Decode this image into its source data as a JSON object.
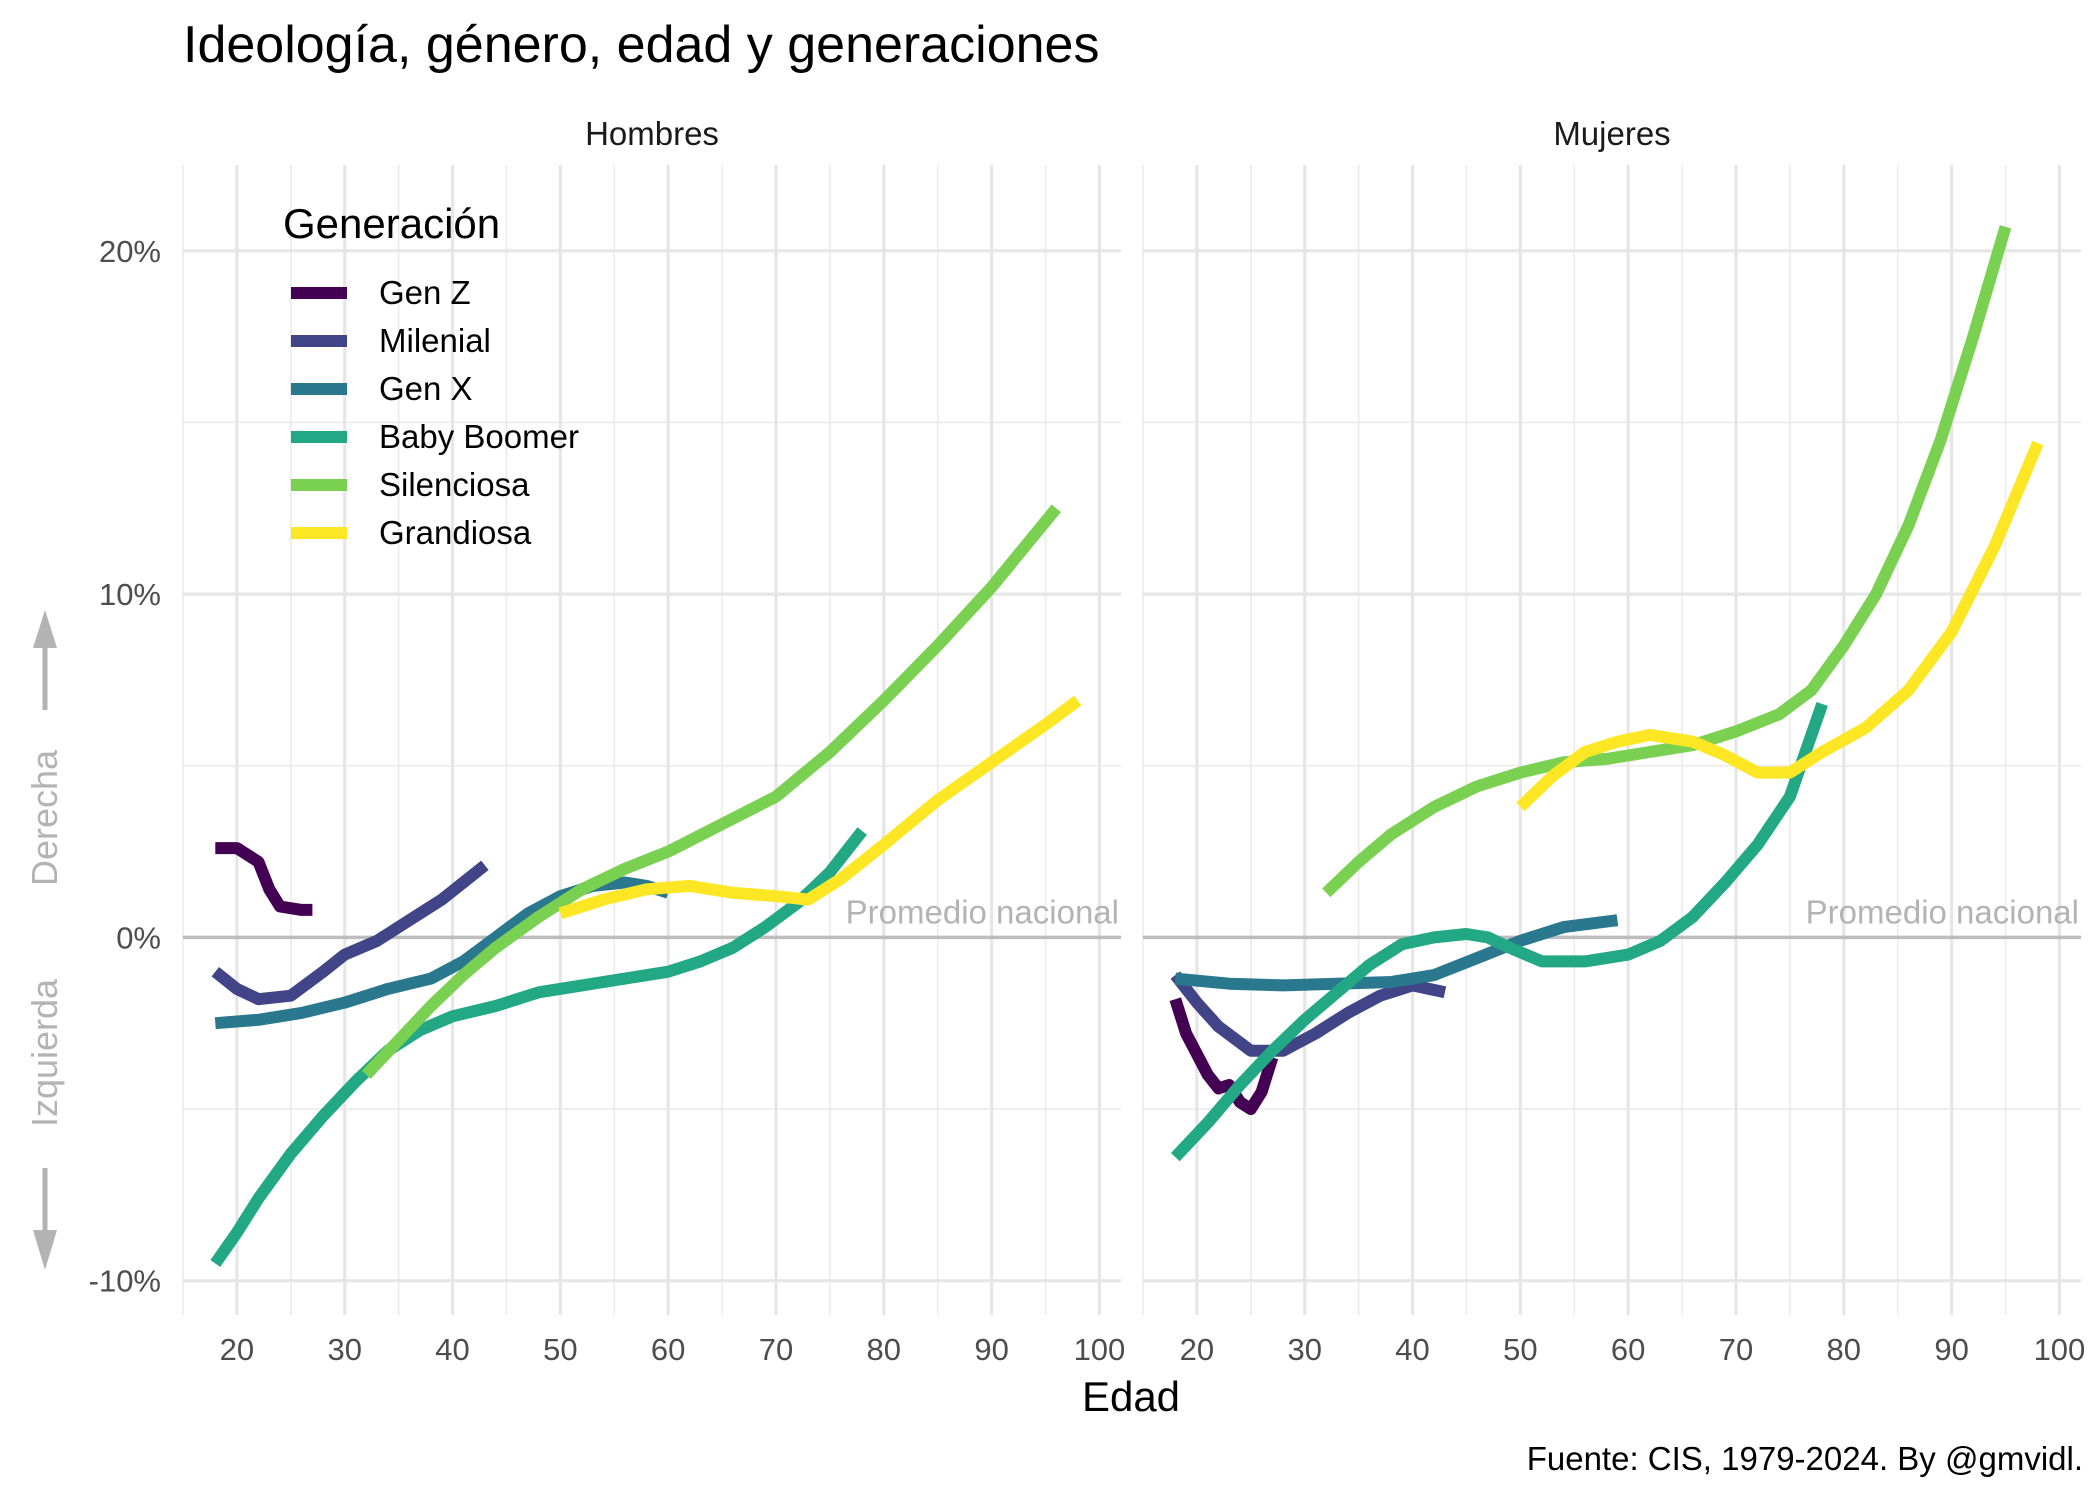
{
  "chart_data": {
    "type": "line",
    "title": "Ideología, género, edad y generaciones",
    "caption": "Fuente: CIS, 1979-2024. By @gmvidl.",
    "xlabel": "Edad",
    "xlim": [
      15,
      102
    ],
    "ylim": [
      -11,
      22.5
    ],
    "x_ticks": [
      20,
      30,
      40,
      50,
      60,
      70,
      80,
      90,
      100
    ],
    "y_ticks": [
      {
        "value": -10,
        "label": "-10%"
      },
      {
        "value": 0,
        "label": "0%"
      },
      {
        "value": 10,
        "label": "10%"
      },
      {
        "value": 20,
        "label": "20%"
      }
    ],
    "reference_line": {
      "value": 0,
      "label": "Promedio nacional"
    },
    "direction_labels": {
      "up": "Derecha",
      "down": "Izquierda"
    },
    "grid": true,
    "legend": {
      "title": "Generación",
      "position": "top-left",
      "entries": [
        {
          "name": "Gen Z",
          "color": "#440154"
        },
        {
          "name": "Milenial",
          "color": "#414487"
        },
        {
          "name": "Gen X",
          "color": "#2a788e"
        },
        {
          "name": "Baby Boomer",
          "color": "#22a884"
        },
        {
          "name": "Silenciosa",
          "color": "#7ad151"
        },
        {
          "name": "Grandiosa",
          "color": "#fde725"
        }
      ]
    },
    "panels": [
      {
        "label": "Hombres",
        "series": [
          {
            "name": "Gen Z",
            "points": [
              [
                18,
                2.6
              ],
              [
                20,
                2.6
              ],
              [
                22,
                2.2
              ],
              [
                23,
                1.4
              ],
              [
                24,
                0.9
              ],
              [
                26,
                0.8
              ],
              [
                27,
                0.8
              ]
            ]
          },
          {
            "name": "Milenial",
            "points": [
              [
                18,
                -1.0
              ],
              [
                20,
                -1.5
              ],
              [
                22,
                -1.8
              ],
              [
                25,
                -1.7
              ],
              [
                28,
                -1.0
              ],
              [
                30,
                -0.5
              ],
              [
                33,
                -0.1
              ],
              [
                36,
                0.5
              ],
              [
                39,
                1.1
              ],
              [
                41,
                1.6
              ],
              [
                43,
                2.1
              ]
            ]
          },
          {
            "name": "Gen X",
            "points": [
              [
                18,
                -2.5
              ],
              [
                22,
                -2.4
              ],
              [
                26,
                -2.2
              ],
              [
                30,
                -1.9
              ],
              [
                34,
                -1.5
              ],
              [
                38,
                -1.2
              ],
              [
                41,
                -0.7
              ],
              [
                44,
                0.0
              ],
              [
                47,
                0.7
              ],
              [
                50,
                1.2
              ],
              [
                53,
                1.5
              ],
              [
                56,
                1.6
              ],
              [
                58,
                1.5
              ],
              [
                60,
                1.3
              ]
            ]
          },
          {
            "name": "Baby Boomer",
            "points": [
              [
                18,
                -9.5
              ],
              [
                20,
                -8.6
              ],
              [
                22,
                -7.6
              ],
              [
                25,
                -6.3
              ],
              [
                28,
                -5.2
              ],
              [
                31,
                -4.2
              ],
              [
                34,
                -3.3
              ],
              [
                37,
                -2.7
              ],
              [
                40,
                -2.3
              ],
              [
                44,
                -2.0
              ],
              [
                48,
                -1.6
              ],
              [
                52,
                -1.4
              ],
              [
                56,
                -1.2
              ],
              [
                60,
                -1.0
              ],
              [
                63,
                -0.7
              ],
              [
                66,
                -0.3
              ],
              [
                69,
                0.3
              ],
              [
                72,
                1.0
              ],
              [
                75,
                1.9
              ],
              [
                78,
                3.1
              ]
            ]
          },
          {
            "name": "Silenciosa",
            "points": [
              [
                32,
                -4.0
              ],
              [
                35,
                -3.0
              ],
              [
                38,
                -2.0
              ],
              [
                41,
                -1.1
              ],
              [
                44,
                -0.3
              ],
              [
                48,
                0.6
              ],
              [
                52,
                1.4
              ],
              [
                56,
                2.0
              ],
              [
                60,
                2.5
              ],
              [
                65,
                3.3
              ],
              [
                70,
                4.1
              ],
              [
                75,
                5.4
              ],
              [
                80,
                6.9
              ],
              [
                85,
                8.5
              ],
              [
                90,
                10.2
              ],
              [
                96,
                12.5
              ]
            ]
          },
          {
            "name": "Grandiosa",
            "points": [
              [
                50,
                0.7
              ],
              [
                54,
                1.1
              ],
              [
                58,
                1.4
              ],
              [
                62,
                1.5
              ],
              [
                66,
                1.3
              ],
              [
                70,
                1.2
              ],
              [
                73,
                1.1
              ],
              [
                76,
                1.7
              ],
              [
                80,
                2.7
              ],
              [
                85,
                4.0
              ],
              [
                90,
                5.1
              ],
              [
                95,
                6.2
              ],
              [
                98,
                6.9
              ]
            ]
          }
        ]
      },
      {
        "label": "Mujeres",
        "series": [
          {
            "name": "Gen Z",
            "points": [
              [
                18,
                -1.8
              ],
              [
                19,
                -2.8
              ],
              [
                21,
                -4.0
              ],
              [
                22,
                -4.4
              ],
              [
                23,
                -4.3
              ],
              [
                24,
                -4.8
              ],
              [
                25,
                -5.0
              ],
              [
                26,
                -4.5
              ],
              [
                27,
                -3.5
              ]
            ]
          },
          {
            "name": "Milenial",
            "points": [
              [
                18,
                -1.1
              ],
              [
                20,
                -1.9
              ],
              [
                22,
                -2.6
              ],
              [
                25,
                -3.3
              ],
              [
                28,
                -3.3
              ],
              [
                31,
                -2.8
              ],
              [
                34,
                -2.2
              ],
              [
                37,
                -1.7
              ],
              [
                40,
                -1.4
              ],
              [
                43,
                -1.6
              ]
            ]
          },
          {
            "name": "Gen X",
            "points": [
              [
                18,
                -1.2
              ],
              [
                23,
                -1.35
              ],
              [
                28,
                -1.4
              ],
              [
                33,
                -1.35
              ],
              [
                38,
                -1.3
              ],
              [
                42,
                -1.1
              ],
              [
                46,
                -0.6
              ],
              [
                50,
                -0.1
              ],
              [
                54,
                0.3
              ],
              [
                59,
                0.5
              ]
            ]
          },
          {
            "name": "Baby Boomer",
            "points": [
              [
                18,
                -6.4
              ],
              [
                21,
                -5.4
              ],
              [
                24,
                -4.3
              ],
              [
                27,
                -3.3
              ],
              [
                30,
                -2.4
              ],
              [
                33,
                -1.6
              ],
              [
                36,
                -0.8
              ],
              [
                39,
                -0.2
              ],
              [
                42,
                0.0
              ],
              [
                45,
                0.1
              ],
              [
                47,
                0.0
              ],
              [
                49,
                -0.3
              ],
              [
                52,
                -0.7
              ],
              [
                56,
                -0.7
              ],
              [
                60,
                -0.5
              ],
              [
                63,
                -0.1
              ],
              [
                66,
                0.6
              ],
              [
                69,
                1.6
              ],
              [
                72,
                2.7
              ],
              [
                75,
                4.1
              ],
              [
                78,
                6.8
              ]
            ]
          },
          {
            "name": "Silenciosa",
            "points": [
              [
                32,
                1.3
              ],
              [
                35,
                2.2
              ],
              [
                38,
                3.0
              ],
              [
                42,
                3.8
              ],
              [
                46,
                4.4
              ],
              [
                50,
                4.8
              ],
              [
                54,
                5.1
              ],
              [
                58,
                5.2
              ],
              [
                62,
                5.4
              ],
              [
                66,
                5.6
              ],
              [
                70,
                6.0
              ],
              [
                74,
                6.5
              ],
              [
                77,
                7.2
              ],
              [
                80,
                8.5
              ],
              [
                83,
                10.0
              ],
              [
                86,
                12.0
              ],
              [
                89,
                14.5
              ],
              [
                92,
                17.5
              ],
              [
                95,
                20.7
              ]
            ]
          },
          {
            "name": "Grandiosa",
            "points": [
              [
                50,
                3.8
              ],
              [
                53,
                4.7
              ],
              [
                56,
                5.4
              ],
              [
                59,
                5.7
              ],
              [
                62,
                5.9
              ],
              [
                66,
                5.7
              ],
              [
                69,
                5.3
              ],
              [
                72,
                4.8
              ],
              [
                75,
                4.8
              ],
              [
                78,
                5.4
              ],
              [
                82,
                6.1
              ],
              [
                86,
                7.2
              ],
              [
                90,
                8.9
              ],
              [
                94,
                11.4
              ],
              [
                98,
                14.4
              ]
            ]
          }
        ]
      }
    ]
  }
}
